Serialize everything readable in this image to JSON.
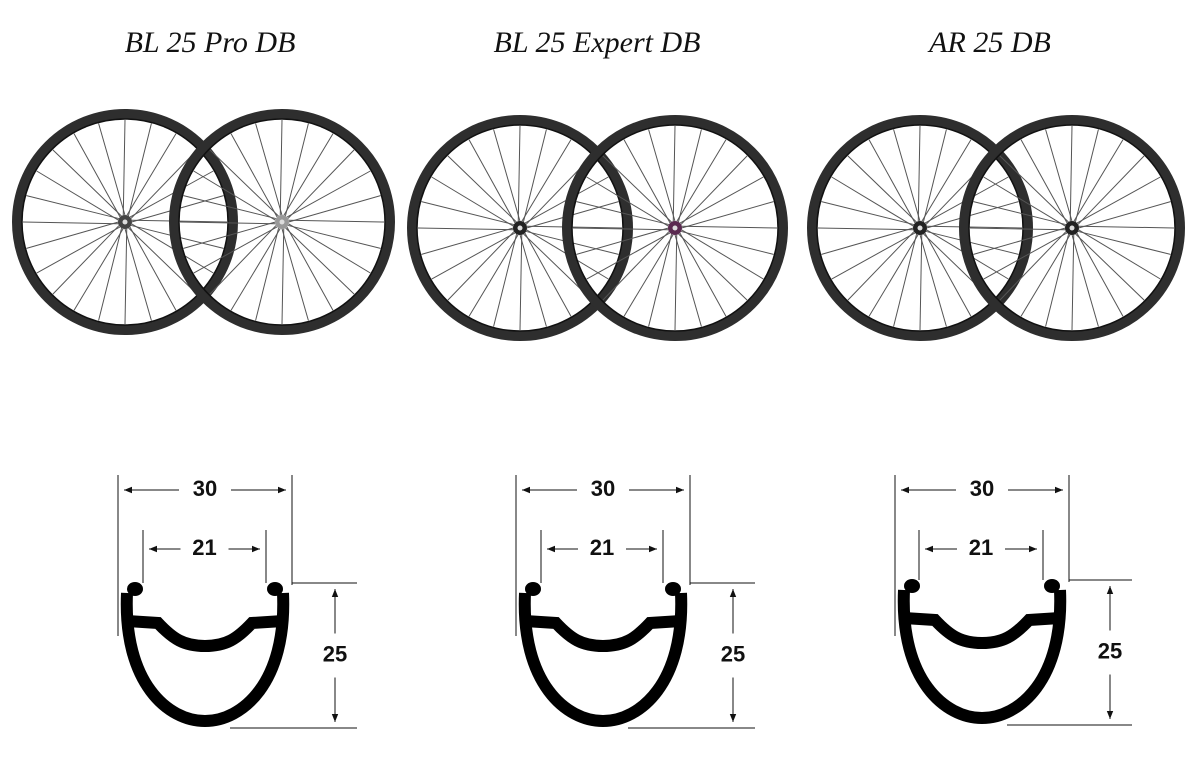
{
  "products": [
    {
      "name": "BL 25 Pro DB",
      "outer_width": 30,
      "inner_width": 21,
      "depth": 25
    },
    {
      "name": "BL 25 Expert DB",
      "outer_width": 30,
      "inner_width": 21,
      "depth": 25
    },
    {
      "name": "AR 25 DB",
      "outer_width": 30,
      "inner_width": 21,
      "depth": 25
    }
  ]
}
